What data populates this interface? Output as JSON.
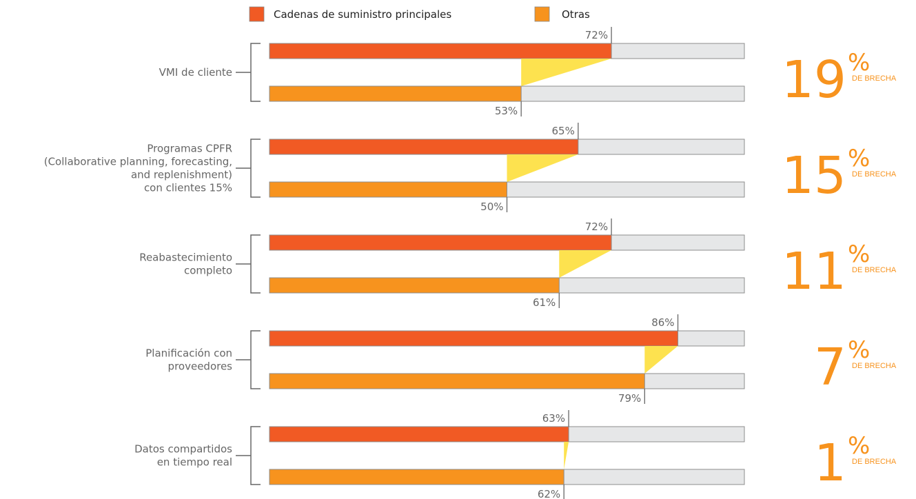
{
  "legend": [
    {
      "label": "Cadenas de suministro principales",
      "color": "#f15a24"
    },
    {
      "label": "Otras",
      "color": "#f7931e"
    }
  ],
  "colors": {
    "primary_bar": "#f15a24",
    "other_bar": "#f7931e",
    "track": "#e6e7e8",
    "track_border": "#8c8c8c",
    "gap_wedge": "#fde24f",
    "gap_text": "#f7931e",
    "bracket": "#666666"
  },
  "gap_suffix": "%",
  "gap_label": "DE BRECHA",
  "chart_data": {
    "type": "bar",
    "orientation": "horizontal",
    "title": "",
    "xlabel": "",
    "ylabel": "",
    "xlim": [
      0,
      100
    ],
    "unit": "%",
    "categories": [
      [
        "VMI de cliente"
      ],
      [
        "Programas CPFR",
        "(Collaborative planning, forecasting,",
        "and replenishment)",
        "con clientes 15%"
      ],
      [
        "Reabastecimiento",
        "completo"
      ],
      [
        "Planificación con",
        "proveedores"
      ],
      [
        "Datos compartidos",
        "en tiempo real"
      ]
    ],
    "series": [
      {
        "name": "Cadenas de suministro principales",
        "values": [
          72,
          65,
          72,
          86,
          63
        ]
      },
      {
        "name": "Otras",
        "values": [
          53,
          50,
          61,
          79,
          62
        ]
      }
    ],
    "gaps": [
      19,
      15,
      11,
      7,
      1
    ]
  }
}
